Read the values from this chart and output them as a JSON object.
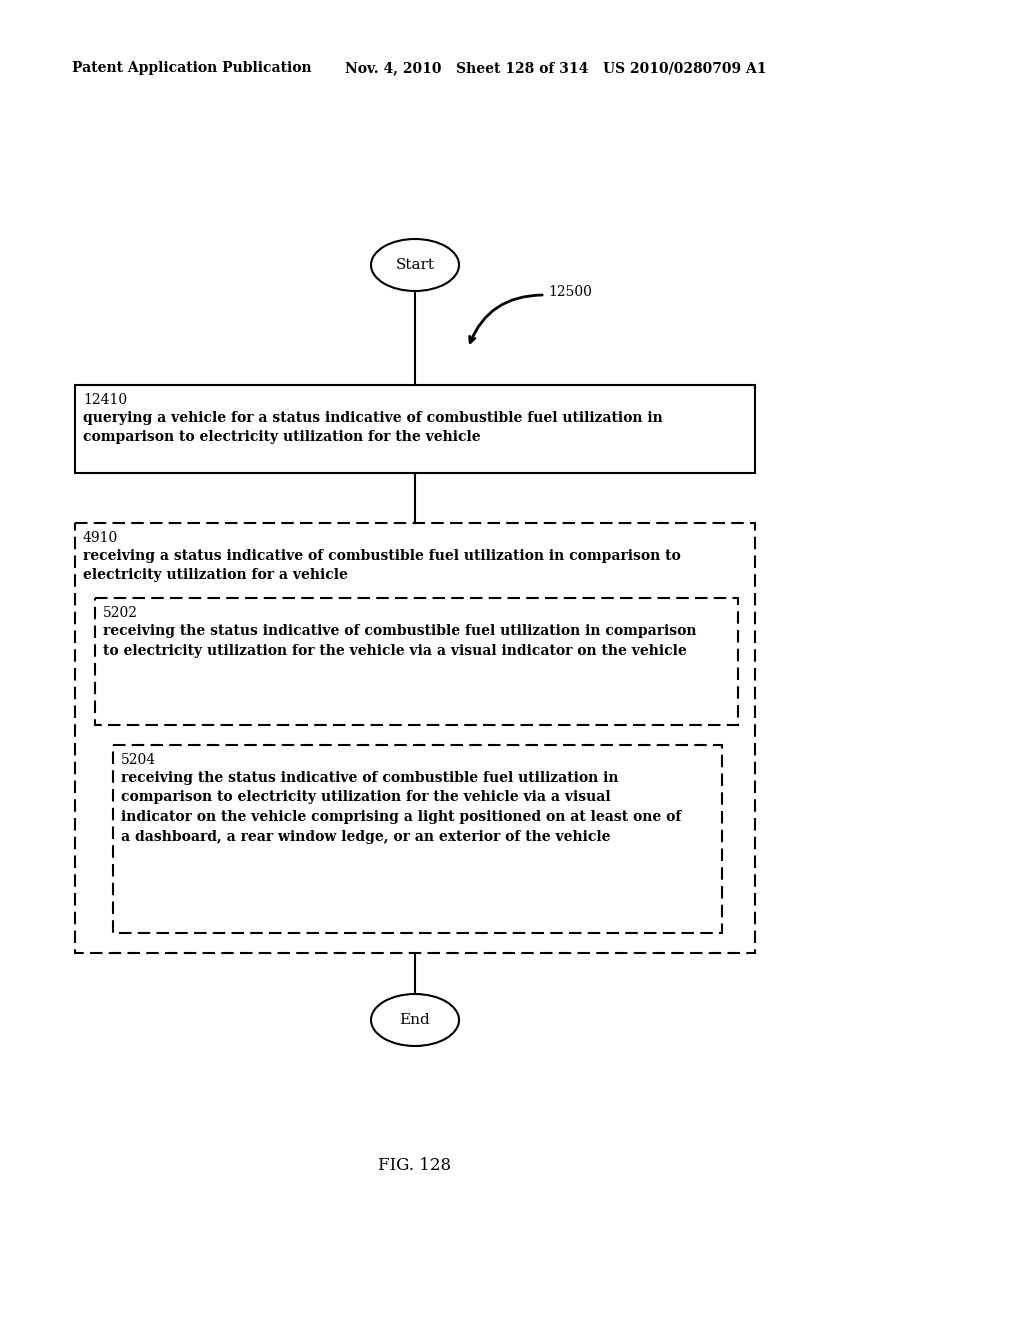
{
  "bg_color": "#ffffff",
  "header_left": "Patent Application Publication",
  "header_mid": "Nov. 4, 2010   Sheet 128 of 314   US 2010/0280709 A1",
  "fig_label": "FIG. 128",
  "start_label": "Start",
  "end_label": "End",
  "flow_label": "12500",
  "box1_id": "12410",
  "box1_text": "querying a vehicle for a status indicative of combustible fuel utilization in\ncomparison to electricity utilization for the vehicle",
  "box2_id": "4910",
  "box2_text": "receiving a status indicative of combustible fuel utilization in comparison to\nelectricity utilization for a vehicle",
  "box3_id": "5202",
  "box3_text": "receiving the status indicative of combustible fuel utilization in comparison\nto electricity utilization for the vehicle via a visual indicator on the vehicle",
  "box4_id": "5204",
  "box4_text": "receiving the status indicative of combustible fuel utilization in\ncomparison to electricity utilization for the vehicle via a visual\nindicator on the vehicle comprising a light positioned on at least one of\na dashboard, a rear window ledge, or an exterior of the vehicle"
}
